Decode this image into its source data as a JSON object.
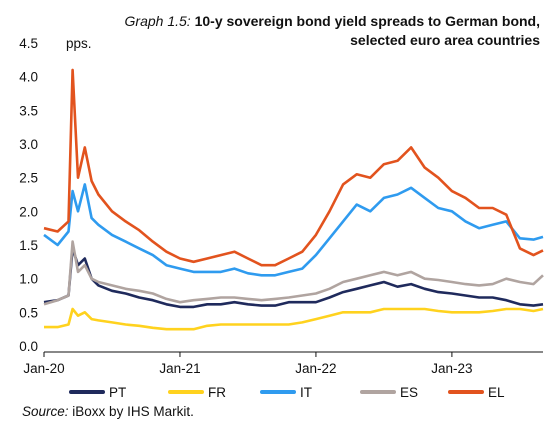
{
  "title": {
    "prefix": "Graph 1.5:",
    "text": "10-y sovereign bond yield spreads to German bond, selected euro area countries"
  },
  "source": {
    "label": "Source:",
    "text": "iBoxx by IHS Markit."
  },
  "chart_data": {
    "type": "line",
    "ylabel": "pps.",
    "ylim": [
      0,
      4.5
    ],
    "y_ticks": [
      "0.0",
      "0.5",
      "1.0",
      "1.5",
      "2.0",
      "2.5",
      "3.0",
      "3.5",
      "4.0",
      "4.5"
    ],
    "x_ticks": [
      {
        "label": "Jan-20",
        "x": 2020.0
      },
      {
        "label": "Jan-21",
        "x": 2021.0
      },
      {
        "label": "Jan-22",
        "x": 2022.0
      },
      {
        "label": "Jan-23",
        "x": 2023.0
      }
    ],
    "xlim": [
      2020.0,
      2023.67
    ],
    "x": [
      2020.0,
      2020.1,
      2020.18,
      2020.21,
      2020.25,
      2020.3,
      2020.35,
      2020.4,
      2020.5,
      2020.6,
      2020.7,
      2020.8,
      2020.9,
      2021.0,
      2021.1,
      2021.2,
      2021.3,
      2021.4,
      2021.5,
      2021.6,
      2021.7,
      2021.8,
      2021.9,
      2022.0,
      2022.1,
      2022.2,
      2022.3,
      2022.4,
      2022.5,
      2022.6,
      2022.7,
      2022.8,
      2022.9,
      2023.0,
      2023.1,
      2023.2,
      2023.3,
      2023.4,
      2023.5,
      2023.6,
      2023.67
    ],
    "series": [
      {
        "name": "PT",
        "color": "#1f2a5c",
        "values": [
          0.65,
          0.68,
          0.75,
          1.45,
          1.2,
          1.3,
          1.0,
          0.9,
          0.82,
          0.78,
          0.72,
          0.68,
          0.62,
          0.58,
          0.58,
          0.62,
          0.62,
          0.65,
          0.62,
          0.6,
          0.6,
          0.65,
          0.65,
          0.65,
          0.72,
          0.8,
          0.85,
          0.9,
          0.95,
          0.88,
          0.92,
          0.85,
          0.8,
          0.78,
          0.75,
          0.72,
          0.72,
          0.68,
          0.62,
          0.6,
          0.62
        ]
      },
      {
        "name": "FR",
        "color": "#ffd21e",
        "values": [
          0.28,
          0.28,
          0.32,
          0.55,
          0.45,
          0.5,
          0.4,
          0.38,
          0.35,
          0.32,
          0.3,
          0.27,
          0.25,
          0.25,
          0.25,
          0.3,
          0.32,
          0.32,
          0.32,
          0.32,
          0.32,
          0.32,
          0.35,
          0.4,
          0.45,
          0.5,
          0.5,
          0.5,
          0.55,
          0.55,
          0.55,
          0.55,
          0.52,
          0.5,
          0.5,
          0.5,
          0.52,
          0.55,
          0.55,
          0.52,
          0.55
        ]
      },
      {
        "name": "IT",
        "color": "#2f9bef",
        "values": [
          1.65,
          1.5,
          1.7,
          2.3,
          2.0,
          2.4,
          1.9,
          1.8,
          1.65,
          1.55,
          1.45,
          1.35,
          1.2,
          1.15,
          1.1,
          1.1,
          1.1,
          1.15,
          1.08,
          1.05,
          1.05,
          1.1,
          1.15,
          1.35,
          1.6,
          1.85,
          2.1,
          2.0,
          2.2,
          2.25,
          2.35,
          2.2,
          2.05,
          2.0,
          1.85,
          1.75,
          1.8,
          1.85,
          1.6,
          1.58,
          1.62
        ]
      },
      {
        "name": "ES",
        "color": "#b0a4a0",
        "values": [
          0.62,
          0.68,
          0.75,
          1.55,
          1.1,
          1.2,
          1.0,
          0.95,
          0.9,
          0.85,
          0.82,
          0.78,
          0.7,
          0.65,
          0.68,
          0.7,
          0.72,
          0.72,
          0.7,
          0.68,
          0.7,
          0.72,
          0.75,
          0.78,
          0.85,
          0.95,
          1.0,
          1.05,
          1.1,
          1.05,
          1.1,
          1.0,
          0.98,
          0.95,
          0.92,
          0.9,
          0.92,
          1.0,
          0.95,
          0.92,
          1.05
        ]
      },
      {
        "name": "EL",
        "color": "#e2531e",
        "values": [
          1.75,
          1.7,
          1.85,
          4.1,
          2.5,
          2.95,
          2.45,
          2.25,
          2.0,
          1.85,
          1.72,
          1.55,
          1.4,
          1.3,
          1.25,
          1.3,
          1.35,
          1.4,
          1.3,
          1.2,
          1.2,
          1.3,
          1.4,
          1.65,
          2.0,
          2.4,
          2.55,
          2.5,
          2.7,
          2.75,
          2.95,
          2.65,
          2.5,
          2.3,
          2.2,
          2.05,
          2.05,
          1.95,
          1.45,
          1.35,
          1.42
        ]
      }
    ]
  }
}
